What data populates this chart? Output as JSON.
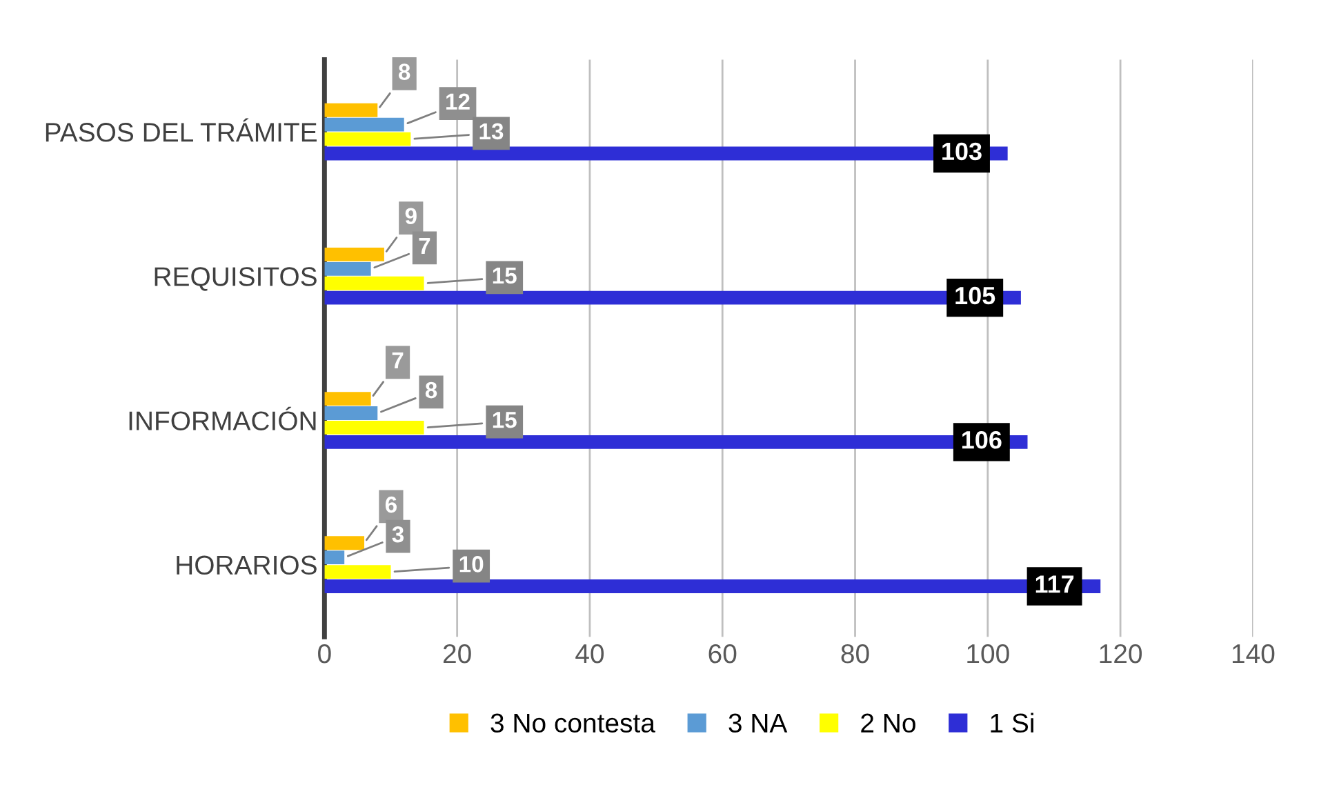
{
  "chart_data": {
    "type": "bar",
    "orientation": "horizontal",
    "categories": [
      "PASOS DEL TRÁMITE",
      "REQUISITOS",
      "INFORMACIÓN",
      "HORARIOS"
    ],
    "series": [
      {
        "name": "3 No contesta",
        "color": "#ffc000",
        "values": [
          8,
          9,
          7,
          6
        ]
      },
      {
        "name": "3 NA",
        "color": "#5b9bd5",
        "values": [
          12,
          7,
          8,
          3
        ]
      },
      {
        "name": "2 No",
        "color": "#ffff00",
        "values": [
          13,
          15,
          15,
          10
        ]
      },
      {
        "name": "1 Si",
        "color": "#2e2ed6",
        "values": [
          103,
          105,
          106,
          117
        ]
      }
    ],
    "xlim": [
      0,
      140
    ],
    "xticks": [
      0,
      20,
      40,
      60,
      80,
      100,
      120,
      140
    ],
    "grid": "x",
    "legend": "bottom",
    "data_labels": true
  }
}
